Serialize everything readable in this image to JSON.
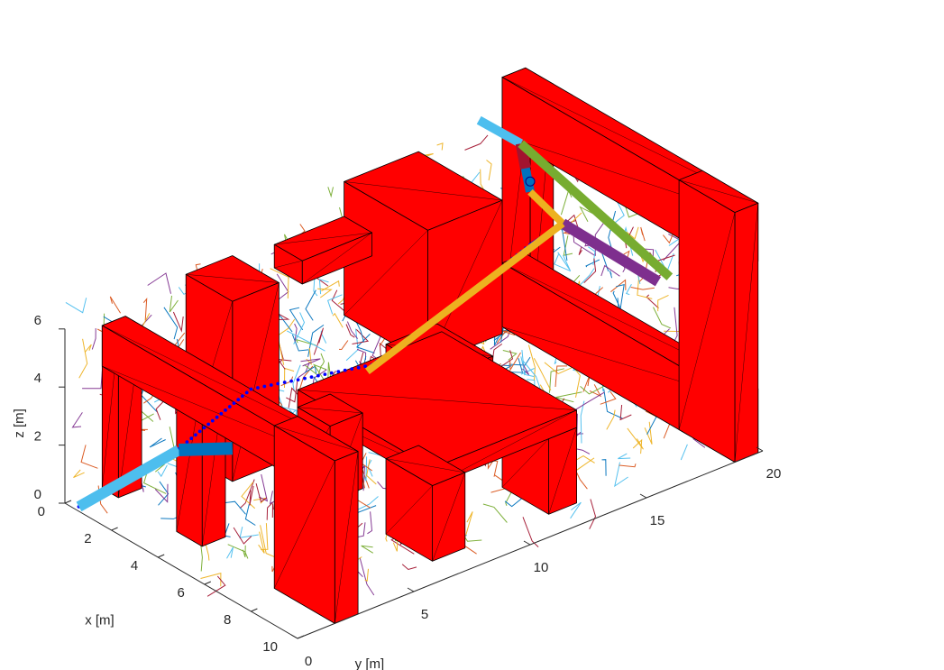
{
  "chart_data": {
    "type": "3d-scene",
    "xlabel": "x [m]",
    "ylabel": "y [m]",
    "zlabel": "z [m]",
    "xlim": [
      0,
      10
    ],
    "ylim": [
      0,
      20
    ],
    "zlim": [
      0,
      6
    ],
    "x_ticks": [
      "0",
      "2",
      "4",
      "6",
      "8",
      "10"
    ],
    "y_ticks": [
      "0",
      "5",
      "10",
      "15",
      "20"
    ],
    "z_ticks": [
      "0",
      "2",
      "4",
      "6"
    ],
    "grid": false,
    "obstacle_color": "#ff0000",
    "obstacles": [
      {
        "name": "front-wall-left-post",
        "x": [
          0,
          0.7
        ],
        "y": [
          1.6,
          2.6
        ],
        "z": [
          0,
          5.6
        ]
      },
      {
        "name": "front-wall-mid-post",
        "x": [
          3.2,
          4.3
        ],
        "y": [
          1.6,
          2.6
        ],
        "z": [
          0,
          5.6
        ]
      },
      {
        "name": "front-wall-right-post",
        "x": [
          7.4,
          10
        ],
        "y": [
          1.6,
          2.6
        ],
        "z": [
          0,
          5.6
        ]
      },
      {
        "name": "front-wall-top-beam",
        "x": [
          0,
          10
        ],
        "y": [
          1.6,
          2.6
        ],
        "z": [
          4.2,
          5.6
        ]
      },
      {
        "name": "tower",
        "x": [
          0,
          2.0
        ],
        "y": [
          5.2,
          7.2
        ],
        "z": [
          0,
          6.2
        ]
      },
      {
        "name": "table-top",
        "x": [
          3.2,
          9.0
        ],
        "y": [
          6.8,
          13.0
        ],
        "z": [
          2.6,
          3.2
        ]
      },
      {
        "name": "table-leg-front-left",
        "x": [
          7.0,
          9.0
        ],
        "y": [
          6.8,
          8.2
        ],
        "z": [
          0,
          2.6
        ]
      },
      {
        "name": "table-leg-front-right",
        "x": [
          7.0,
          9.0
        ],
        "y": [
          11.8,
          13.0
        ],
        "z": [
          0,
          2.6
        ]
      },
      {
        "name": "table-leg-back-left",
        "x": [
          3.2,
          4.6
        ],
        "y": [
          6.8,
          8.2
        ],
        "z": [
          0,
          2.6
        ]
      },
      {
        "name": "table-leg-back-right",
        "x": [
          3.2,
          4.6
        ],
        "y": [
          11.8,
          13.0
        ],
        "z": [
          0,
          2.6
        ]
      },
      {
        "name": "table-box",
        "x": [
          4.8,
          7.2
        ],
        "y": [
          9.0,
          11.2
        ],
        "z": [
          3.2,
          4.8
        ]
      },
      {
        "name": "shelf",
        "x": [
          0,
          1.2
        ],
        "y": [
          9.0,
          12.0
        ],
        "z": [
          5.2,
          6.0
        ]
      },
      {
        "name": "big-box",
        "x": [
          0,
          3.6
        ],
        "y": [
          12.0,
          15.2
        ],
        "z": [
          2.6,
          7.2
        ]
      },
      {
        "name": "back-wall-left-post",
        "x": [
          0,
          1.2
        ],
        "y": [
          18.8,
          19.8
        ],
        "z": [
          0,
          8.6
        ]
      },
      {
        "name": "back-wall-right-post",
        "x": [
          7.6,
          10
        ],
        "y": [
          18.8,
          19.8
        ],
        "z": [
          0,
          8.6
        ]
      },
      {
        "name": "back-wall-top-beam",
        "x": [
          0,
          10
        ],
        "y": [
          18.8,
          19.8
        ],
        "z": [
          6.6,
          8.6
        ]
      },
      {
        "name": "back-wall-bottom-beam",
        "x": [
          0,
          10
        ],
        "y": [
          18.8,
          19.8
        ],
        "z": [
          0,
          2.2
        ]
      }
    ],
    "tree_colors": [
      "#0072bd",
      "#d95319",
      "#edb120",
      "#7e2f8e",
      "#77ac30",
      "#4dbeee",
      "#a2142f"
    ],
    "tree_seed": 7,
    "tree_edge_count": 900,
    "path_color": "#0000ff",
    "path": [
      {
        "x": 0.4,
        "y": 0.2,
        "z": 0.0
      },
      {
        "x": 2.5,
        "y": 2.2,
        "z": 2.2
      },
      {
        "x": 4.0,
        "y": 4.0,
        "z": 4.5
      },
      {
        "x": 5.2,
        "y": 8.0,
        "z": 4.6
      },
      {
        "x": 4.6,
        "y": 12.0,
        "z": 5.0
      },
      {
        "x": 4.0,
        "y": 16.0,
        "z": 5.6
      },
      {
        "x": 3.4,
        "y": 18.0,
        "z": 5.4
      }
    ],
    "arm_start": [
      {
        "name": "link-1",
        "color": "#4dbeee",
        "from": {
          "x": 0.4,
          "y": 0.2,
          "z": 0.0
        },
        "to": {
          "x": 2.6,
          "y": 2.3,
          "z": 2.3
        },
        "width": 12
      },
      {
        "name": "link-2",
        "color": "#0072bd",
        "from": {
          "x": 2.6,
          "y": 2.3,
          "z": 2.3
        },
        "to": {
          "x": 3.6,
          "y": 3.6,
          "z": 2.4
        },
        "width": 14
      }
    ],
    "arm_end": [
      {
        "name": "link-1",
        "color": "#4dbeee",
        "from": {
          "x": 0.2,
          "y": 17.6,
          "z": 7.6
        },
        "to": {
          "x": 1.2,
          "y": 18.4,
          "z": 7.0
        },
        "width": 10
      },
      {
        "name": "link-2",
        "color": "#a2142f",
        "from": {
          "x": 1.2,
          "y": 18.4,
          "z": 7.0
        },
        "to": {
          "x": 1.6,
          "y": 18.2,
          "z": 6.4
        },
        "width": 12
      },
      {
        "name": "link-3",
        "color": "#0072bd",
        "from": {
          "x": 1.6,
          "y": 18.2,
          "z": 6.4
        },
        "to": {
          "x": 2.2,
          "y": 17.8,
          "z": 6.0
        },
        "width": 10
      },
      {
        "name": "link-4",
        "color": "#edb120",
        "from": {
          "x": 2.2,
          "y": 17.8,
          "z": 6.0
        },
        "to": {
          "x": 3.4,
          "y": 18.0,
          "z": 5.4
        },
        "width": 8
      },
      {
        "name": "link-5",
        "color": "#7e2f8e",
        "from": {
          "x": 3.4,
          "y": 18.0,
          "z": 5.4
        },
        "to": {
          "x": 6.6,
          "y": 18.9,
          "z": 4.6
        },
        "width": 12
      },
      {
        "name": "link-6",
        "color": "#77ac30",
        "from": {
          "x": 1.2,
          "y": 18.4,
          "z": 7.0
        },
        "to": {
          "x": 6.6,
          "y": 19.4,
          "z": 4.6
        },
        "width": 10
      },
      {
        "name": "link-7",
        "color": "#edb120",
        "from": {
          "x": 5.4,
          "y": 7.6,
          "z": 4.6
        },
        "to": {
          "x": 3.4,
          "y": 18.0,
          "z": 5.4
        },
        "width": 8
      }
    ]
  }
}
